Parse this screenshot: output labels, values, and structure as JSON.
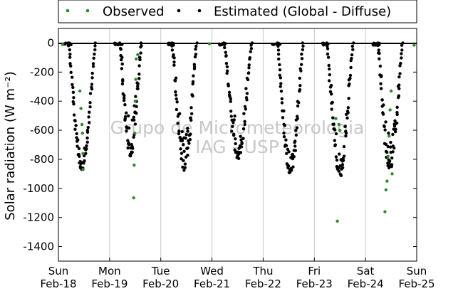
{
  "chart_data": {
    "type": "scatter",
    "ylabel": "Solar radiation (W m⁻²)",
    "ylim": [
      -1500,
      100
    ],
    "y_ticks": [
      0,
      -200,
      -400,
      -600,
      -800,
      -1000,
      -1200,
      -1400
    ],
    "x_ticks": [
      {
        "day": "Sun",
        "date": "Feb-18"
      },
      {
        "day": "Mon",
        "date": "Feb-19"
      },
      {
        "day": "Tue",
        "date": "Feb-20"
      },
      {
        "day": "Wed",
        "date": "Feb-21"
      },
      {
        "day": "Thu",
        "date": "Feb-22"
      },
      {
        "day": "Fri",
        "date": "Feb-23"
      },
      {
        "day": "Sat",
        "date": "Feb-24"
      },
      {
        "day": "Sun",
        "date": "Feb-25"
      }
    ],
    "grid": "vertical",
    "legend_placement": "top",
    "watermark": [
      "Grupo de Micrometeorologia",
      "IAG - USP"
    ],
    "series": [
      {
        "name": "Observed",
        "color": "#2e8b2e",
        "x_days": [
          0.08,
          0.42,
          0.44,
          0.46,
          0.47,
          0.48,
          0.48,
          1.47,
          1.48,
          1.49,
          1.5,
          1.51,
          1.52,
          1.55,
          2.95,
          5.42,
          5.45,
          5.48,
          5.5,
          6.38,
          6.4,
          6.42,
          6.44,
          6.46,
          6.48,
          6.5,
          6.52,
          6.95
        ],
        "values": [
          -10,
          -330,
          -450,
          -560,
          -620,
          -870,
          -760,
          -1065,
          -840,
          -620,
          -400,
          -250,
          -110,
          -80,
          -5,
          -520,
          -1225,
          -560,
          -600,
          -1160,
          -1010,
          -950,
          -780,
          -640,
          -460,
          -330,
          -900,
          -15
        ]
      },
      {
        "name": "Estimated (Global - Diffuse)",
        "color": "#000000",
        "days": [
          {
            "start": 0.2,
            "end": 0.72,
            "peak": 880,
            "noise": 120
          },
          {
            "start": 1.2,
            "end": 1.62,
            "peak": 800,
            "noise": 260
          },
          {
            "start": 2.22,
            "end": 2.7,
            "peak": 920,
            "noise": 320
          },
          {
            "start": 3.24,
            "end": 3.78,
            "peak": 820,
            "noise": 280
          },
          {
            "start": 4.28,
            "end": 4.78,
            "peak": 920,
            "noise": 150
          },
          {
            "start": 5.24,
            "end": 5.76,
            "peak": 940,
            "noise": 220
          },
          {
            "start": 6.24,
            "end": 6.72,
            "peak": 900,
            "noise": 260
          }
        ]
      }
    ]
  }
}
